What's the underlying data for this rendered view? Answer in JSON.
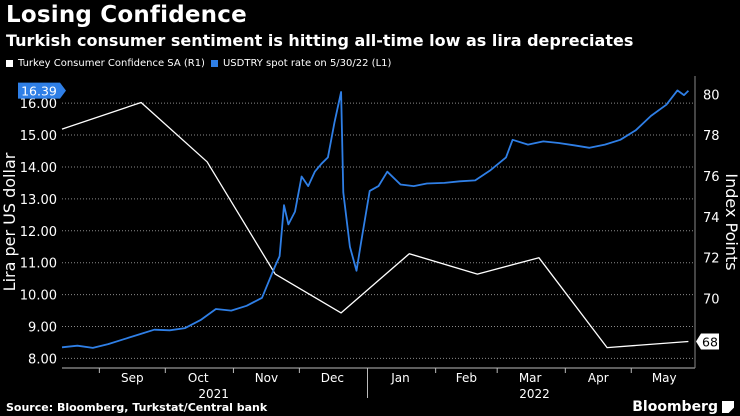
{
  "header": {
    "title": "Losing Confidence",
    "subtitle": "Turkish consumer sentiment is hitting all-time low as lira depreciates"
  },
  "legend": [
    {
      "label": "Turkey Consumer Confidence SA  (R1)",
      "color": "#ffffff"
    },
    {
      "label": "USDTRY spot rate on 5/30/22 (L1)",
      "color": "#2f7fe6"
    }
  ],
  "footer": {
    "source": "Source: Bloomberg, Turkstat/Central bank",
    "brand": "Bloomberg"
  },
  "colors": {
    "background": "#000000",
    "fx": "#2f7fe6",
    "confidence": "#ffffff",
    "grid": "#8a8a8a"
  },
  "chart_data": {
    "type": "line",
    "left_axis": {
      "label": "Lira per US dollar",
      "ylim": [
        7.7,
        16.85
      ],
      "ticks": [
        "8.00",
        "9.00",
        "10.00",
        "11.00",
        "12.00",
        "13.00",
        "14.00",
        "15.00",
        "16.00"
      ],
      "last_value_label": "16.39"
    },
    "right_axis": {
      "label": "Index Points",
      "ylim": [
        66.6,
        80.9
      ],
      "ticks": [
        "68",
        "70",
        "72",
        "74",
        "76",
        "78",
        "80"
      ],
      "last_value_label": "68"
    },
    "x_axis": {
      "range": [
        "2021-08-15",
        "2022-05-30"
      ],
      "month_labels": [
        {
          "label": "Sep",
          "date": "2021-09-16"
        },
        {
          "label": "Oct",
          "date": "2021-10-16"
        },
        {
          "label": "Nov",
          "date": "2021-11-16"
        },
        {
          "label": "Dec",
          "date": "2021-12-16"
        },
        {
          "label": "Jan",
          "date": "2022-01-16"
        },
        {
          "label": "Feb",
          "date": "2022-02-15"
        },
        {
          "label": "Mar",
          "date": "2022-03-16"
        },
        {
          "label": "Apr",
          "date": "2022-04-16"
        },
        {
          "label": "May",
          "date": "2022-05-16"
        }
      ],
      "month_ticks": [
        "2021-09-01",
        "2021-10-01",
        "2021-11-01",
        "2021-12-01",
        "2022-01-01",
        "2022-02-01",
        "2022-03-01",
        "2022-04-01",
        "2022-05-01"
      ],
      "year_labels": [
        {
          "label": "2021",
          "date": "2021-10-23"
        },
        {
          "label": "2022",
          "date": "2022-03-18"
        }
      ],
      "year_divider": "2022-01-01"
    },
    "series": [
      {
        "name": "Turkey Consumer Confidence SA  (R1)",
        "axis": "right",
        "points": [
          [
            "2021-08-15",
            78.3
          ],
          [
            "2021-09-20",
            79.6
          ],
          [
            "2021-10-20",
            76.7
          ],
          [
            "2021-11-20",
            71.2
          ],
          [
            "2021-12-20",
            69.3
          ],
          [
            "2022-01-20",
            72.2
          ],
          [
            "2022-02-20",
            71.2
          ],
          [
            "2022-03-20",
            72.0
          ],
          [
            "2022-04-20",
            67.6
          ],
          [
            "2022-05-27",
            67.9
          ]
        ]
      },
      {
        "name": "USDTRY spot rate on 5/30/22 (L1)",
        "axis": "left",
        "points": [
          [
            "2021-08-15",
            8.35
          ],
          [
            "2021-08-22",
            8.4
          ],
          [
            "2021-08-29",
            8.33
          ],
          [
            "2021-09-05",
            8.45
          ],
          [
            "2021-09-12",
            8.6
          ],
          [
            "2021-09-19",
            8.75
          ],
          [
            "2021-09-26",
            8.9
          ],
          [
            "2021-10-03",
            8.88
          ],
          [
            "2021-10-10",
            8.95
          ],
          [
            "2021-10-17",
            9.2
          ],
          [
            "2021-10-24",
            9.55
          ],
          [
            "2021-10-31",
            9.5
          ],
          [
            "2021-11-07",
            9.65
          ],
          [
            "2021-11-14",
            9.9
          ],
          [
            "2021-11-17",
            10.4
          ],
          [
            "2021-11-20",
            10.9
          ],
          [
            "2021-11-22",
            11.2
          ],
          [
            "2021-11-24",
            12.8
          ],
          [
            "2021-11-26",
            12.2
          ],
          [
            "2021-11-29",
            12.6
          ],
          [
            "2021-12-02",
            13.7
          ],
          [
            "2021-12-05",
            13.4
          ],
          [
            "2021-12-08",
            13.85
          ],
          [
            "2021-12-11",
            14.1
          ],
          [
            "2021-12-14",
            14.3
          ],
          [
            "2021-12-17",
            15.4
          ],
          [
            "2021-12-20",
            16.35
          ],
          [
            "2021-12-21",
            13.2
          ],
          [
            "2021-12-24",
            11.5
          ],
          [
            "2021-12-27",
            10.75
          ],
          [
            "2021-12-29",
            11.6
          ],
          [
            "2022-01-02",
            13.25
          ],
          [
            "2022-01-06",
            13.4
          ],
          [
            "2022-01-10",
            13.85
          ],
          [
            "2022-01-16",
            13.45
          ],
          [
            "2022-01-22",
            13.4
          ],
          [
            "2022-01-28",
            13.48
          ],
          [
            "2022-02-05",
            13.5
          ],
          [
            "2022-02-12",
            13.55
          ],
          [
            "2022-02-19",
            13.58
          ],
          [
            "2022-02-26",
            13.9
          ],
          [
            "2022-03-05",
            14.3
          ],
          [
            "2022-03-08",
            14.85
          ],
          [
            "2022-03-15",
            14.7
          ],
          [
            "2022-03-22",
            14.8
          ],
          [
            "2022-03-29",
            14.75
          ],
          [
            "2022-04-05",
            14.68
          ],
          [
            "2022-04-12",
            14.6
          ],
          [
            "2022-04-19",
            14.7
          ],
          [
            "2022-04-26",
            14.85
          ],
          [
            "2022-05-03",
            15.15
          ],
          [
            "2022-05-10",
            15.6
          ],
          [
            "2022-05-17",
            15.95
          ],
          [
            "2022-05-22",
            16.4
          ],
          [
            "2022-05-25",
            16.25
          ],
          [
            "2022-05-27",
            16.39
          ]
        ]
      }
    ]
  }
}
